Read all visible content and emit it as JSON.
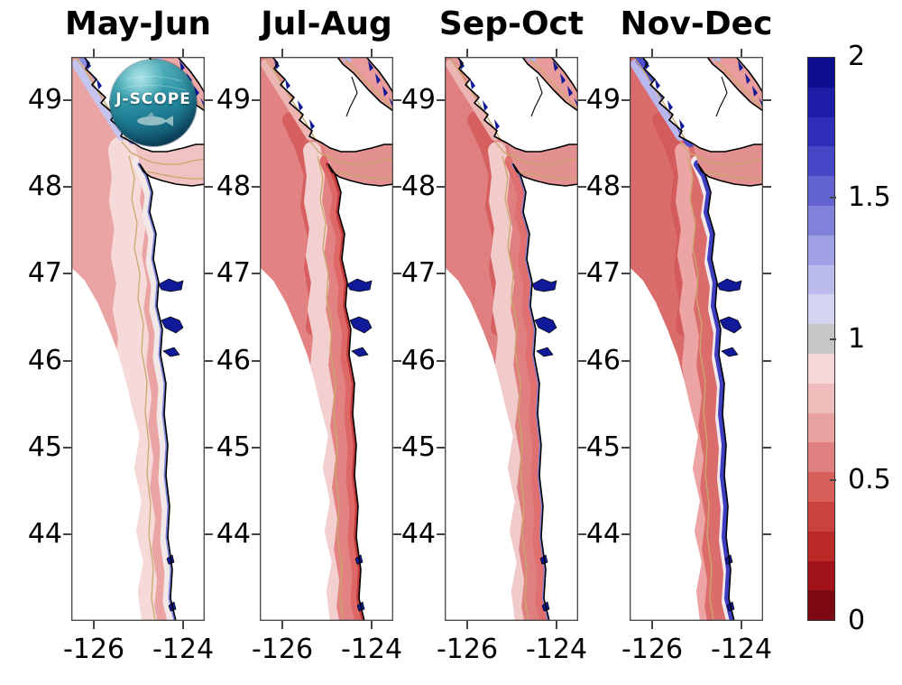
{
  "figure": {
    "background": "#ffffff"
  },
  "panels": [
    {
      "title": "May-Jun",
      "colors": {
        "offshore": "#eaa4a4",
        "accent": "#eaa4a4",
        "mid": "#f6dada",
        "near": "#f2e8e8",
        "ci": "#c6c6c6",
        "coast": "#7b84dc",
        "nw": "#8d8de0",
        "nw2": "#c4c4ee",
        "strait": "#f1c2c2",
        "georgia": "#eda8a8",
        "wmid": "34",
        "wnear": "13",
        "wci": "5",
        "wcoast": "5",
        "wnw": "10"
      }
    },
    {
      "title": "Jul-Aug",
      "colors": {
        "offshore": "#e28282",
        "accent": "#d66060",
        "mid": "#f3cfcf",
        "near": "#de6868",
        "ci": "#cc4646",
        "coast": "#c33a3a",
        "nw": "#e59898",
        "nw2": "#edb4b4",
        "strait": "#e39090",
        "georgia": "#e89c9c",
        "wmid": "20",
        "wnear": "15",
        "wci": "8",
        "wcoast": "6",
        "wnw": "12"
      }
    },
    {
      "title": "Sep-Oct",
      "colors": {
        "offshore": "#df7f7f",
        "accent": "#d66060",
        "mid": "#f1caca",
        "near": "#e07070",
        "ci": "#d45c5c",
        "coast": "#7b84dc",
        "nw": "#e59898",
        "nw2": "#edb4b4",
        "strait": "#e39090",
        "georgia": "#e89c9c",
        "wmid": "20",
        "wnear": "15",
        "wci": "6",
        "wcoast": "4",
        "wnw": "12"
      }
    },
    {
      "title": "Nov-Dec",
      "colors": {
        "offshore": "#db6c6c",
        "accent": "#d35b5b",
        "mid": "#eda4a4",
        "near": "#f1e9ee",
        "ci": "#a8aeea",
        "coast": "#3d3dc2",
        "nw": "#5050cc",
        "nw2": "#b8b8ee",
        "strait": "#e39090",
        "georgia": "#e89c9c",
        "wmid": "16",
        "wnear": "12",
        "wci": "8",
        "wcoast": "10",
        "wnw": "16"
      }
    }
  ],
  "axes": {
    "y_ticks": [
      "49",
      "48",
      "47",
      "46",
      "45",
      "44"
    ],
    "x_ticks": [
      "-126",
      "-124"
    ]
  },
  "colorbar": {
    "tick_labels": [
      {
        "label": "2",
        "value": 2
      },
      {
        "label": "1.5",
        "value": 1.5
      },
      {
        "label": "1",
        "value": 1
      },
      {
        "label": "0.5",
        "value": 0.5
      },
      {
        "label": "0",
        "value": 0
      }
    ],
    "segments_bottom_to_top": [
      "#7d0a12",
      "#a11318",
      "#ba2a26",
      "#ca423e",
      "#d65f5a",
      "#e08080",
      "#e8a0a0",
      "#efbcbc",
      "#f5d7d7",
      "#c6c6c6",
      "#d4d4f0",
      "#bcbcec",
      "#a0a0e4",
      "#8181da",
      "#6262d0",
      "#4646c6",
      "#2e2eb8",
      "#1c1ca6",
      "#0d0d8e"
    ]
  },
  "logo": {
    "text": "J-SCOPE"
  },
  "chart_data": {
    "type": "heatmap",
    "subtype": "coastal-ocean-map-small-multiples",
    "title": "",
    "panel_titles": [
      "May-Jun",
      "Jul-Aug",
      "Sep-Oct",
      "Nov-Dec"
    ],
    "x_axis": {
      "tick_values": [
        -126,
        -124
      ],
      "range": [
        -127,
        -123
      ],
      "units": "longitude_deg"
    },
    "y_axis": {
      "tick_values": [
        49,
        48,
        47,
        46,
        45,
        44
      ],
      "range": [
        43,
        49.5
      ],
      "units": "latitude_deg"
    },
    "colorbar": {
      "range": [
        0,
        2
      ],
      "ticks": [
        0,
        0.5,
        1,
        1.5,
        2
      ],
      "n_discrete_segments": 19,
      "neutral_gray_band": [
        0.95,
        1.05
      ],
      "low_color": "#7d0a12",
      "high_color": "#0d0d8e"
    },
    "regional_values_approx": [
      {
        "panel": "May-Jun",
        "offshore": 0.65,
        "shelf_band": 0.85,
        "nearshore": 0.9,
        "coastal_strip": 1.35,
        "vancouver_island_band": 1.2,
        "estuaries": 1.95
      },
      {
        "panel": "Jul-Aug",
        "offshore": 0.55,
        "shelf_band": 0.8,
        "nearshore": 0.45,
        "coastal_strip": 0.35,
        "vancouver_island_band": 0.6,
        "estuaries": 1.95
      },
      {
        "panel": "Sep-Oct",
        "offshore": 0.55,
        "shelf_band": 0.8,
        "nearshore": 0.45,
        "coastal_strip": 1.3,
        "vancouver_island_band": 0.6,
        "estuaries": 1.95
      },
      {
        "panel": "Nov-Dec",
        "offshore": 0.5,
        "shelf_band": 0.65,
        "nearshore": 0.95,
        "coastal_strip": 1.75,
        "vancouver_island_band": 1.7,
        "estuaries": 1.95
      }
    ],
    "legend_position": "right",
    "grid": false
  }
}
